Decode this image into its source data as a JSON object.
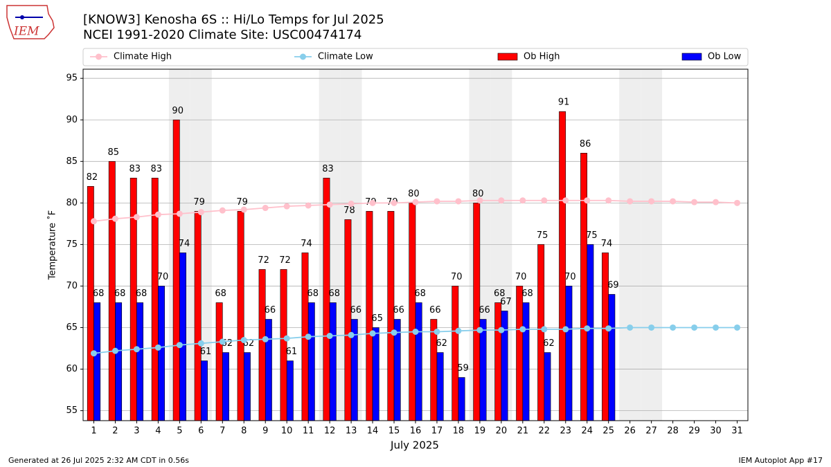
{
  "chart_data": {
    "type": "bar",
    "logo_text": "IEM",
    "title": "[KNOW3] Kenosha 6S :: Hi/Lo Temps for Jul 2025",
    "subtitle": "NCEI 1991-2020 Climate Site: USC00474174",
    "xlabel": "July 2025",
    "ylabel": "Temperature ˚F",
    "footer_left": "Generated at 26 Jul 2025 2:32 AM CDT in 0.56s",
    "footer_right": "IEM Autoplot App #17",
    "x": [
      1,
      2,
      3,
      4,
      5,
      6,
      7,
      8,
      9,
      10,
      11,
      12,
      13,
      14,
      15,
      16,
      17,
      18,
      19,
      20,
      21,
      22,
      23,
      24,
      25,
      26,
      27,
      28,
      29,
      30,
      31
    ],
    "xlim": [
      0.5,
      31.5
    ],
    "xticks": [
      1,
      2,
      3,
      4,
      5,
      6,
      7,
      8,
      9,
      10,
      11,
      12,
      13,
      14,
      15,
      16,
      17,
      18,
      19,
      20,
      21,
      22,
      23,
      24,
      25,
      26,
      27,
      28,
      29,
      30,
      31
    ],
    "ylim": [
      53.8,
      96.1
    ],
    "yticks": [
      55,
      60,
      65,
      70,
      75,
      80,
      85,
      90,
      95
    ],
    "grid": true,
    "shaded_days": [
      5,
      6,
      12,
      13,
      19,
      20,
      26,
      27
    ],
    "shade_color": "#eeeeee",
    "series": [
      {
        "name": "Climate High",
        "kind": "line",
        "color": "#ffc0cb",
        "values": [
          77.8,
          78.1,
          78.3,
          78.6,
          78.7,
          78.9,
          79.1,
          79.2,
          79.4,
          79.6,
          79.7,
          79.8,
          79.9,
          80.0,
          80.0,
          80.1,
          80.2,
          80.2,
          80.3,
          80.3,
          80.3,
          80.3,
          80.3,
          80.3,
          80.3,
          80.2,
          80.2,
          80.2,
          80.1,
          80.1,
          80.0
        ]
      },
      {
        "name": "Climate Low",
        "kind": "line",
        "color": "#87ceeb",
        "values": [
          61.9,
          62.2,
          62.4,
          62.6,
          62.9,
          63.1,
          63.3,
          63.5,
          63.6,
          63.7,
          63.9,
          64.0,
          64.1,
          64.3,
          64.4,
          64.5,
          64.5,
          64.6,
          64.7,
          64.7,
          64.8,
          64.8,
          64.8,
          64.9,
          64.9,
          65.0,
          65.0,
          65.0,
          65.0,
          65.0,
          65.0
        ]
      },
      {
        "name": "Ob High",
        "kind": "bar",
        "color": "#ff0000",
        "values": [
          82,
          85,
          83,
          83,
          90,
          79,
          68,
          79,
          72,
          72,
          74,
          83,
          78,
          79,
          79,
          80,
          66,
          70,
          80,
          68,
          70,
          75,
          91,
          86,
          74,
          null,
          null,
          null,
          null,
          null,
          null
        ]
      },
      {
        "name": "Ob Low",
        "kind": "bar",
        "color": "#0000ff",
        "values": [
          68,
          68,
          68,
          70,
          74,
          61,
          62,
          62,
          66,
          61,
          68,
          68,
          66,
          65,
          66,
          68,
          62,
          59,
          66,
          67,
          68,
          62,
          70,
          75,
          69,
          null,
          null,
          null,
          null,
          null,
          null
        ]
      }
    ]
  }
}
